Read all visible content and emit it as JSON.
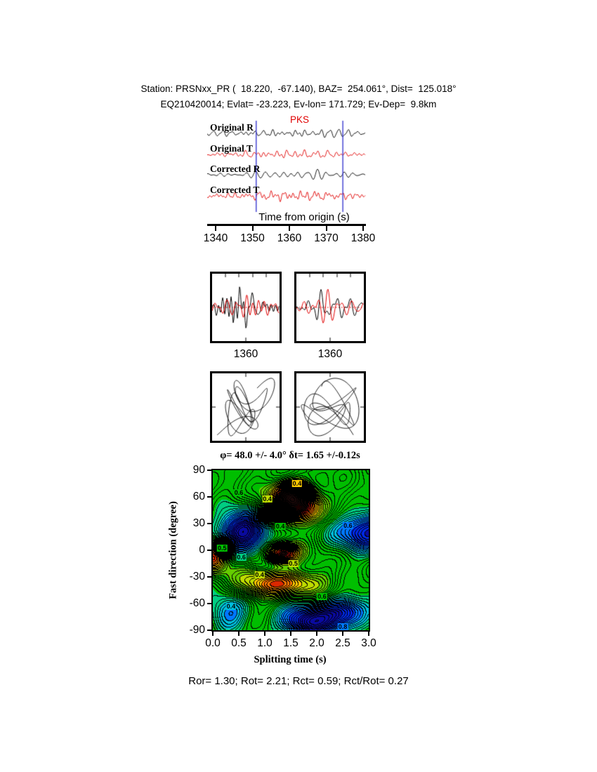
{
  "header": {
    "line1": "Station: PRSNxx_PR (  18.220,  -67.140), BAZ=  254.061°, Dist=  125.018°",
    "line2": "EQ210420014; Evlat= -23.223, Ev-lon= 171.729; Ev-Dep=  9.8km"
  },
  "chart_data": [
    {
      "id": "record-section",
      "type": "line",
      "phase_label": "PKS",
      "traces": [
        {
          "label": "Original R",
          "color": "#000000"
        },
        {
          "label": "Original T",
          "color": "#e00000"
        },
        {
          "label": "Corrected R",
          "color": "#000000"
        },
        {
          "label": "Corrected T",
          "color": "#e00000"
        }
      ],
      "xlabel": "Time from origin (s)",
      "xlim": [
        1338,
        1381
      ],
      "xticks": [
        "1340",
        "1350",
        "1360",
        "1370",
        "1380"
      ],
      "xtick_values": [
        1340,
        1350,
        1360,
        1370,
        1380
      ],
      "window_markers": {
        "color": "#3b3bd0",
        "t": [
          1351,
          1374.5
        ]
      }
    },
    {
      "id": "zoom-pair",
      "type": "line",
      "panels": [
        {
          "tick_label": "1360",
          "trace_colors": [
            "#000000",
            "#e00000"
          ]
        },
        {
          "tick_label": "1360",
          "trace_colors": [
            "#000000",
            "#e00000"
          ]
        }
      ]
    },
    {
      "id": "particle-motion-pair",
      "type": "line",
      "panels": [
        {
          "description": "particle motion, original"
        },
        {
          "description": "particle motion, corrected"
        }
      ]
    },
    {
      "id": "misfit-map",
      "type": "heatmap",
      "title": "φ= 48.0 +/- 4.0° δt= 1.65 +/-0.12s",
      "xlabel": "Splitting time (s)",
      "ylabel": "Fast direction (degree)",
      "xlim": [
        0.0,
        3.0
      ],
      "ylim": [
        -90,
        90
      ],
      "xticks": [
        "0.0",
        "0.5",
        "1.0",
        "1.5",
        "2.0",
        "2.5",
        "3.0"
      ],
      "xtick_values": [
        0,
        0.5,
        1,
        1.5,
        2,
        2.5,
        3
      ],
      "yticks": [
        "90",
        "60",
        "30",
        "0",
        "-30",
        "-60",
        "-90"
      ],
      "ytick_values": [
        90,
        60,
        30,
        0,
        -30,
        -60,
        -90
      ],
      "best_solution": {
        "phi_deg": 48.0,
        "phi_err_deg": 4.0,
        "dt_s": 1.65,
        "dt_err_s": 0.12,
        "marker": "star",
        "x": 1.65,
        "y": 47
      },
      "contour_interval": 0.05,
      "field_features": [
        {
          "x": 1.55,
          "y": 63,
          "sx": 0.28,
          "sy": 11,
          "amp": 1.15
        },
        {
          "x": 1.62,
          "y": 46,
          "sx": 0.34,
          "sy": 12,
          "amp": 0.95
        },
        {
          "x": 1.32,
          "y": -4,
          "sx": 0.22,
          "sy": 8,
          "amp": 1.15
        },
        {
          "x": 0.02,
          "y": -8,
          "sx": 0.18,
          "sy": 12,
          "amp": 0.9
        },
        {
          "x": 1.3,
          "y": -38,
          "sx": 0.5,
          "sy": 11,
          "amp": 0.8
        },
        {
          "x": 0.55,
          "y": 20,
          "sx": 0.38,
          "sy": 16,
          "amp": -1.05
        },
        {
          "x": 3.0,
          "y": 22,
          "sx": 0.4,
          "sy": 16,
          "amp": -0.95
        },
        {
          "x": 1.85,
          "y": -82,
          "sx": 0.45,
          "sy": 14,
          "amp": -0.95
        },
        {
          "x": 2.55,
          "y": -68,
          "sx": 0.33,
          "sy": 12,
          "amp": -0.75
        },
        {
          "x": 0.3,
          "y": -70,
          "sx": 0.3,
          "sy": 14,
          "amp": -0.45
        }
      ],
      "contour_labels": [
        {
          "x": 0.5,
          "y": 65,
          "text": "0.6"
        },
        {
          "x": 1.05,
          "y": 58,
          "text": "0.4"
        },
        {
          "x": 1.62,
          "y": 75,
          "text": "0.4"
        },
        {
          "x": 2.6,
          "y": 28,
          "text": "0.6"
        },
        {
          "x": 0.18,
          "y": 2,
          "text": "0.5"
        },
        {
          "x": 0.55,
          "y": -8,
          "text": "0.6"
        },
        {
          "x": 1.55,
          "y": -15,
          "text": "0.5"
        },
        {
          "x": 0.9,
          "y": -28,
          "text": "0.4"
        },
        {
          "x": 0.35,
          "y": -63,
          "text": "0.4"
        },
        {
          "x": 2.1,
          "y": -52,
          "text": "0.6"
        },
        {
          "x": 2.5,
          "y": -86,
          "text": "0.8"
        },
        {
          "x": 1.3,
          "y": 27,
          "text": "0.4"
        }
      ]
    }
  ],
  "footer": {
    "stats": "Ror= 1.30; Rot= 2.21; Rct= 0.59; Rct/Rot= 0.27"
  }
}
